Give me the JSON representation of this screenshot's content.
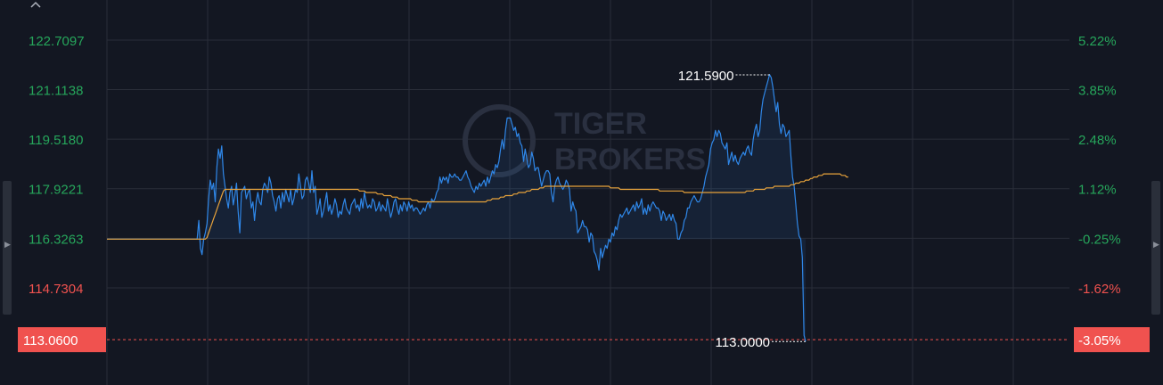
{
  "chart_data": {
    "type": "line",
    "y_ticks_left": [
      "122.7097",
      "121.1138",
      "119.5180",
      "117.9221",
      "116.3263",
      "114.7304"
    ],
    "y_ticks_right": [
      "5.22%",
      "3.85%",
      "2.48%",
      "1.12%",
      "-0.25%",
      "-1.62%"
    ],
    "y_tick_values": [
      122.7097,
      121.1138,
      119.518,
      117.9221,
      116.3263,
      114.7304
    ],
    "last_price_label": "113.0600",
    "last_change_label": "-3.05%",
    "last_price_value": 113.06,
    "high_label": "121.5900",
    "low_label": "113.0000",
    "high_value": 121.59,
    "low_value": 113.0,
    "watermark": [
      "TIGER",
      "BROKERS"
    ],
    "y_range": [
      111.6,
      124.0
    ],
    "pre_market_level": 116.3,
    "series": [
      {
        "role": "price",
        "color": "#2f87e8",
        "values": [
          116.3,
          116.3,
          116.3,
          116.3,
          116.3,
          116.3,
          116.3,
          116.3,
          116.3,
          116.3,
          116.3,
          116.3,
          116.3,
          116.3,
          116.3,
          116.3,
          116.3,
          116.3,
          116.3,
          116.3,
          116.3,
          116.3,
          116.3,
          116.3,
          116.3,
          116.3,
          116.3,
          116.3,
          116.3,
          116.3,
          116.3,
          116.3,
          116.3,
          116.3,
          116.3,
          116.3,
          116.3,
          116.3,
          116.3,
          116.3,
          116.3,
          116.3,
          116.3,
          116.3,
          116.3,
          116.3,
          116.3,
          116.3,
          116.3,
          116.3,
          116.3,
          116.3,
          116.3,
          116.3,
          116.3,
          116.3,
          116.9,
          116.0,
          115.8,
          116.3,
          116.5,
          116.8,
          117.6,
          118.2,
          117.9,
          118.1,
          117.5,
          118.6,
          119.2,
          118.9,
          119.3,
          118.4,
          118.0,
          117.6,
          117.3,
          117.8,
          118.0,
          117.4,
          117.7,
          118.1,
          117.2,
          116.5,
          117.8,
          117.9,
          118.0,
          117.6,
          117.8,
          117.9,
          117.3,
          117.5,
          116.9,
          117.5,
          117.8,
          117.5,
          117.4,
          117.9,
          118.1,
          118.0,
          117.8,
          118.3,
          118.1,
          117.7,
          117.5,
          117.2,
          117.6,
          117.7,
          117.3,
          117.8,
          117.5,
          117.9,
          117.7,
          117.5,
          117.9,
          117.4,
          117.6,
          117.9,
          117.8,
          118.4,
          118.0,
          117.6,
          117.7,
          118.2,
          118.3,
          118.1,
          117.8,
          118.5,
          117.8,
          118.0,
          117.1,
          117.3,
          117.6,
          117.0,
          117.2,
          117.5,
          117.8,
          117.2,
          117.4,
          117.1,
          117.3,
          117.6,
          117.4,
          117.0,
          117.2,
          117.1,
          117.4,
          117.6,
          117.3,
          117.2,
          117.1,
          117.4,
          117.5,
          117.6,
          117.3,
          117.4,
          117.2,
          117.6,
          117.3,
          117.8,
          117.5,
          117.3,
          117.4,
          117.3,
          117.6,
          117.5,
          117.2,
          117.3,
          117.5,
          117.2,
          117.4,
          117.3,
          117.2,
          117.6,
          117.3,
          117.0,
          117.2,
          117.5,
          117.6,
          117.3,
          117.1,
          117.4,
          117.2,
          117.5,
          117.4,
          117.2,
          117.5,
          117.3,
          117.4,
          117.2,
          117.3,
          117.3,
          117.2,
          117.1,
          117.2,
          117.3,
          117.2,
          117.4,
          117.5,
          117.3,
          117.6,
          117.5,
          117.6,
          117.8,
          117.9,
          118.3,
          118.1,
          118.3,
          118.2,
          118.3,
          118.1,
          118.4,
          118.3,
          118.3,
          118.4,
          118.3,
          118.3,
          118.2,
          118.2,
          118.3,
          118.4,
          118.5,
          118.3,
          118.2,
          118.0,
          117.9,
          117.8,
          118.0,
          117.9,
          118.1,
          118.0,
          118.1,
          118.2,
          118.0,
          118.3,
          118.1,
          118.3,
          118.5,
          118.4,
          118.7,
          118.6,
          118.8,
          119.2,
          119.5,
          119.2,
          119.8,
          120.2,
          120.2,
          120.2,
          120.0,
          119.8,
          119.9,
          119.6,
          119.7,
          119.4,
          119.3,
          118.8,
          119.2,
          118.9,
          118.6,
          118.7,
          119.1,
          118.9,
          118.5,
          118.6,
          118.6,
          118.3,
          118.0,
          118.2,
          118.4,
          118.5,
          118.5,
          118.4,
          117.8,
          117.5,
          118.0,
          118.2,
          118.3,
          118.1,
          118.0,
          117.9,
          118.0,
          118.2,
          118.1,
          117.9,
          117.2,
          117.5,
          117.3,
          117.2,
          116.5,
          116.6,
          116.7,
          116.9,
          116.7,
          116.7,
          116.6,
          116.2,
          116.5,
          116.4,
          115.9,
          115.8,
          115.6,
          115.3,
          116.0,
          115.7,
          115.9,
          116.1,
          116.0,
          116.3,
          116.2,
          116.5,
          116.4,
          116.7,
          116.6,
          116.9,
          117.1,
          117.0,
          117.1,
          117.2,
          117.3,
          117.1,
          117.2,
          117.3,
          117.4,
          117.2,
          117.5,
          117.3,
          117.4,
          117.6,
          117.1,
          117.3,
          117.1,
          117.4,
          117.2,
          117.4,
          117.5,
          117.4,
          117.3,
          117.3,
          117.2,
          116.9,
          117.2,
          117.1,
          116.9,
          117.0,
          117.1,
          116.9,
          117.1,
          116.9,
          116.8,
          116.3,
          116.3,
          116.5,
          116.6,
          116.9,
          117.0,
          117.3,
          117.3,
          117.5,
          117.6,
          117.7,
          117.6,
          117.5,
          117.5,
          117.6,
          117.8,
          118.0,
          118.3,
          118.5,
          118.7,
          119.2,
          119.4,
          119.5,
          119.8,
          119.6,
          119.8,
          119.7,
          119.4,
          119.3,
          119.2,
          119.4,
          118.7,
          118.9,
          119.1,
          118.8,
          119.0,
          118.8,
          118.7,
          118.9,
          119.0,
          119.1,
          119.0,
          119.2,
          119.3,
          119.1,
          119.0,
          119.5,
          119.8,
          120.0,
          119.6,
          119.8,
          120.4,
          120.8,
          121.0,
          121.2,
          121.4,
          121.6,
          121.5,
          121.2,
          120.8,
          120.4,
          120.7,
          120.0,
          119.7,
          120.0,
          119.9,
          119.6,
          119.7,
          119.8,
          119.0,
          118.3,
          118.0,
          117.4,
          116.8,
          116.4,
          116.3,
          115.7,
          113.2,
          113.0
        ]
      },
      {
        "role": "average",
        "color": "#e8a33b",
        "values": [
          116.3,
          116.3,
          116.3,
          116.3,
          116.3,
          116.3,
          116.3,
          116.3,
          116.3,
          116.3,
          116.3,
          116.3,
          116.3,
          116.3,
          116.3,
          116.3,
          116.3,
          116.3,
          116.3,
          116.3,
          116.3,
          116.3,
          116.3,
          116.3,
          116.3,
          116.3,
          116.3,
          116.3,
          116.3,
          116.3,
          116.3,
          116.3,
          116.3,
          116.3,
          116.3,
          116.3,
          116.3,
          116.3,
          116.3,
          116.3,
          116.3,
          116.3,
          116.3,
          116.3,
          116.3,
          116.3,
          116.3,
          116.3,
          116.3,
          116.3,
          116.3,
          116.3,
          116.3,
          116.3,
          116.3,
          116.3,
          116.3,
          116.3,
          116.3,
          116.3,
          116.3,
          116.35,
          116.5,
          116.65,
          116.8,
          116.95,
          117.1,
          117.25,
          117.4,
          117.55,
          117.7,
          117.85,
          117.9,
          117.9,
          117.9,
          117.9,
          117.9,
          117.9,
          117.9,
          117.9,
          117.9,
          117.9,
          117.9,
          117.9,
          117.9,
          117.9,
          117.9,
          117.9,
          117.9,
          117.9,
          117.9,
          117.9,
          117.9,
          117.9,
          117.9,
          117.9,
          117.9,
          117.9,
          117.9,
          117.9,
          117.9,
          117.9,
          117.9,
          117.9,
          117.9,
          117.9,
          117.9,
          117.9,
          117.9,
          117.9,
          117.9,
          117.9,
          117.9,
          117.9,
          117.9,
          117.9,
          117.9,
          117.9,
          117.9,
          117.9,
          117.9,
          117.9,
          117.9,
          117.9,
          117.9,
          117.9,
          117.9,
          117.9,
          117.9,
          117.9,
          117.9,
          117.9,
          117.9,
          117.9,
          117.9,
          117.9,
          117.9,
          117.9,
          117.9,
          117.9,
          117.9,
          117.9,
          117.9,
          117.9,
          117.9,
          117.9,
          117.9,
          117.9,
          117.9,
          117.9,
          117.9,
          117.9,
          117.9,
          117.9,
          117.85,
          117.85,
          117.85,
          117.85,
          117.8,
          117.8,
          117.8,
          117.8,
          117.8,
          117.8,
          117.8,
          117.75,
          117.75,
          117.75,
          117.75,
          117.7,
          117.7,
          117.7,
          117.7,
          117.7,
          117.65,
          117.65,
          117.65,
          117.65,
          117.6,
          117.6,
          117.6,
          117.6,
          117.6,
          117.6,
          117.6,
          117.6,
          117.55,
          117.55,
          117.55,
          117.55,
          117.5,
          117.5,
          117.5,
          117.5,
          117.5,
          117.5,
          117.5,
          117.5,
          117.5,
          117.5,
          117.5,
          117.5,
          117.5,
          117.5,
          117.5,
          117.5,
          117.5,
          117.5,
          117.5,
          117.5,
          117.5,
          117.5,
          117.5,
          117.5,
          117.5,
          117.5,
          117.5,
          117.5,
          117.5,
          117.5,
          117.5,
          117.5,
          117.5,
          117.5,
          117.5,
          117.5,
          117.5,
          117.5,
          117.5,
          117.5,
          117.5,
          117.5,
          117.55,
          117.55,
          117.55,
          117.6,
          117.6,
          117.6,
          117.6,
          117.6,
          117.65,
          117.65,
          117.65,
          117.7,
          117.7,
          117.7,
          117.7,
          117.7,
          117.75,
          117.75,
          117.75,
          117.8,
          117.8,
          117.8,
          117.8,
          117.8,
          117.85,
          117.85,
          117.85,
          117.9,
          117.9,
          117.9,
          117.9,
          117.9,
          117.95,
          117.95,
          117.95,
          118.0,
          118.0,
          118.0,
          118.0,
          118.0,
          118.0,
          118.0,
          118.0,
          118.0,
          118.0,
          118.0,
          118.0,
          118.0,
          118.0,
          118.0,
          118.0,
          118.0,
          118.0,
          118.0,
          118.0,
          118.0,
          118.0,
          118.0,
          118.0,
          118.0,
          118.0,
          118.0,
          118.0,
          118.0,
          118.0,
          118.0,
          118.0,
          118.0,
          118.0,
          118.0,
          118.0,
          118.0,
          118.0,
          118.0,
          118.0,
          117.95,
          117.95,
          117.95,
          117.95,
          117.95,
          117.95,
          117.9,
          117.9,
          117.9,
          117.9,
          117.9,
          117.9,
          117.9,
          117.9,
          117.9,
          117.9,
          117.9,
          117.9,
          117.9,
          117.9,
          117.9,
          117.9,
          117.9,
          117.9,
          117.9,
          117.9,
          117.9,
          117.9,
          117.9,
          117.9,
          117.85,
          117.85,
          117.85,
          117.85,
          117.85,
          117.85,
          117.85,
          117.85,
          117.85,
          117.85,
          117.85,
          117.85,
          117.85,
          117.85,
          117.85,
          117.8,
          117.8,
          117.8,
          117.8,
          117.8,
          117.8,
          117.8,
          117.8,
          117.8,
          117.8,
          117.8,
          117.8,
          117.8,
          117.8,
          117.8,
          117.8,
          117.8,
          117.8,
          117.8,
          117.8,
          117.8,
          117.8,
          117.8,
          117.8,
          117.8,
          117.8,
          117.8,
          117.8,
          117.8,
          117.8,
          117.8,
          117.8,
          117.8,
          117.8,
          117.8,
          117.8,
          117.8,
          117.8,
          117.85,
          117.85,
          117.85,
          117.85,
          117.85,
          117.9,
          117.9,
          117.9,
          117.9,
          117.9,
          117.9,
          117.9,
          117.95,
          117.95,
          117.95,
          117.95,
          117.95,
          118.0,
          118.0,
          118.0,
          118.0,
          118.0,
          118.0,
          118.0,
          118.0,
          118.0,
          118.0,
          118.05,
          118.05,
          118.05,
          118.1,
          118.1,
          118.1,
          118.15,
          118.15,
          118.15,
          118.2,
          118.2,
          118.2,
          118.25,
          118.25,
          118.3,
          118.3,
          118.3,
          118.35,
          118.35,
          118.35,
          118.4,
          118.4,
          118.4,
          118.4,
          118.4,
          118.4,
          118.4,
          118.4,
          118.4,
          118.4,
          118.4,
          118.35,
          118.35,
          118.35,
          118.3,
          118.3
        ]
      }
    ]
  },
  "colors": {
    "background": "#131722",
    "grid": "#2a2e39",
    "positive": "#26a65b",
    "negative": "#f0524f",
    "price_line": "#2f87e8",
    "avg_line": "#e8a33b",
    "label_white": "#ffffff",
    "watermark": "#2a3040"
  },
  "ui": {
    "collapse_icon": "chevron-up-icon",
    "left_handle_icon": "caret-right-icon",
    "right_handle_icon": "caret-right-icon"
  }
}
